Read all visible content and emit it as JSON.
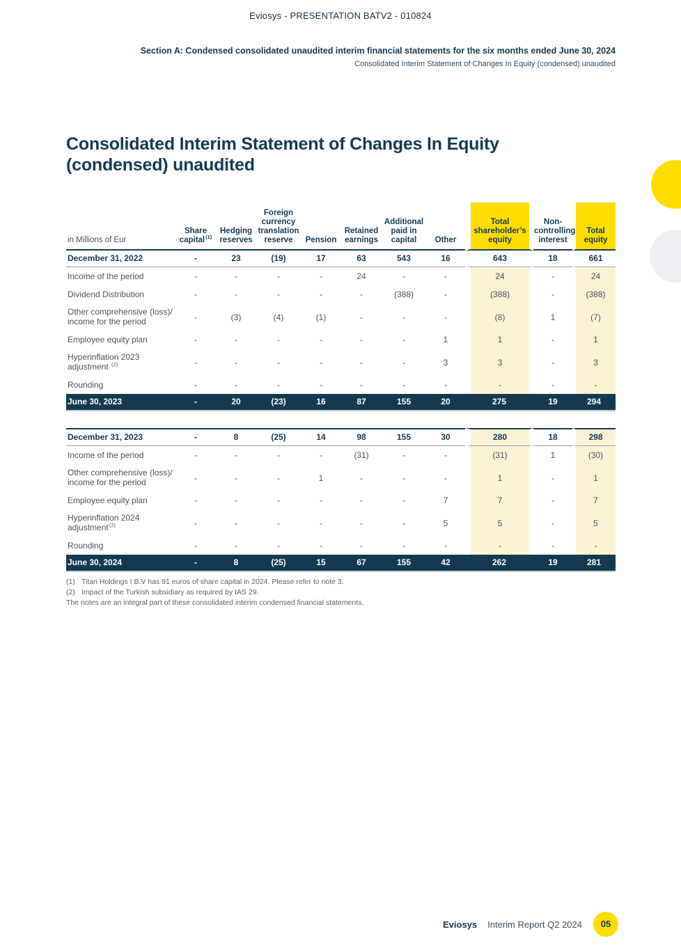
{
  "colors": {
    "navy": "#143a52",
    "yellow": "#ffdd00",
    "cream_highlight": "#faf3d3",
    "gray_circle": "#edeff2"
  },
  "header": {
    "doc_header": "Eviosys - PRESENTATION BATV2 - 010824",
    "section_title": "Section A: Condensed consolidated unaudited interim financial statements for the six months ended June 30, 2024",
    "section_subtitle": "Consolidated Interim Statement of Changes In Equity (condensed) unaudited"
  },
  "title": {
    "line1": "Consolidated Interim Statement of Changes In Equity",
    "line2": "(condensed) unaudited"
  },
  "table": {
    "unit_label": "in Millions of Eur",
    "columns": [
      {
        "lines": [
          "Share",
          "capital"
        ],
        "sup": "(1)"
      },
      {
        "lines": [
          "Hedging",
          "reserves"
        ]
      },
      {
        "lines": [
          "Foreign",
          "currency",
          "translation",
          "reserve"
        ]
      },
      {
        "lines": [
          "Pension"
        ]
      },
      {
        "lines": [
          "Retained",
          "earnings"
        ]
      },
      {
        "lines": [
          "Additional",
          "paid in",
          "capital"
        ]
      },
      {
        "lines": [
          "Other"
        ]
      },
      {
        "lines": [
          "Total",
          "shareholder’s",
          "equity"
        ],
        "highlight": true
      },
      {
        "lines": [
          "Non-",
          "controlling",
          "interest"
        ]
      },
      {
        "lines": [
          "Total",
          "equity"
        ],
        "highlight": true
      }
    ],
    "period1": {
      "opening": {
        "label": "December 31, 2022",
        "values": [
          "-",
          "23",
          "(19)",
          "17",
          "63",
          "543",
          "16",
          "643",
          "18",
          "661"
        ]
      },
      "rows": [
        {
          "label": "Income of the period",
          "values": [
            "-",
            "-",
            "-",
            "-",
            "24",
            "-",
            "-",
            "24",
            "-",
            "24"
          ]
        },
        {
          "label": "Dividend Distribution",
          "values": [
            "-",
            "-",
            "-",
            "-",
            "-",
            "(388)",
            "-",
            "(388)",
            "-",
            "(388)"
          ]
        },
        {
          "lines": [
            "Other comprehensive (loss)/",
            "income for the period"
          ],
          "values": [
            "-",
            "(3)",
            "(4)",
            "(1)",
            "-",
            "-",
            "-",
            "(8)",
            "1",
            "(7)"
          ]
        },
        {
          "label": "Employee equity plan",
          "values": [
            "-",
            "-",
            "-",
            "-",
            "-",
            "-",
            "1",
            "1",
            "-",
            "1"
          ]
        },
        {
          "lines": [
            "Hyperinflation 2023",
            "adjustment "
          ],
          "sup": "(2)",
          "values": [
            "-",
            "-",
            "-",
            "-",
            "-",
            "-",
            "3",
            "3",
            "-",
            "3"
          ]
        },
        {
          "label": "Rounding",
          "values": [
            "-",
            "-",
            "-",
            "-",
            "-",
            "-",
            "-",
            "-",
            "-",
            "-"
          ]
        }
      ],
      "closing": {
        "label": "June 30, 2023",
        "values": [
          "-",
          "20",
          "(23)",
          "16",
          "87",
          "155",
          "20",
          "275",
          "19",
          "294"
        ]
      }
    },
    "period2": {
      "opening": {
        "label": "December 31, 2023",
        "values": [
          "-",
          "8",
          "(25)",
          "14",
          "98",
          "155",
          "30",
          "280",
          "18",
          "298"
        ]
      },
      "rows": [
        {
          "label": "Income of the period",
          "values": [
            "-",
            "-",
            "-",
            "-",
            "(31)",
            "-",
            "-",
            "(31)",
            "1",
            "(30)"
          ]
        },
        {
          "lines": [
            "Other comprehensive (loss)/",
            "income for the period"
          ],
          "values": [
            "-",
            "-",
            "-",
            "1",
            "-",
            "-",
            "-",
            "1",
            "-",
            "1"
          ]
        },
        {
          "label": "Employee equity plan",
          "values": [
            "-",
            "-",
            "-",
            "-",
            "-",
            "-",
            "7",
            "7",
            "-",
            "7"
          ]
        },
        {
          "lines": [
            "Hyperinflation 2024",
            "adjustment"
          ],
          "sup": "(2)",
          "values": [
            "-",
            "-",
            "-",
            "-",
            "-",
            "-",
            "5",
            "5",
            "-",
            "5"
          ]
        },
        {
          "label": "Rounding",
          "values": [
            "-",
            "-",
            "-",
            "-",
            "-",
            "-",
            "-",
            "-",
            "-",
            "-"
          ]
        }
      ],
      "closing": {
        "label": "June 30, 2024",
        "values": [
          "-",
          "8",
          "(25)",
          "15",
          "67",
          "155",
          "42",
          "262",
          "19",
          "281"
        ]
      }
    }
  },
  "footnotes": {
    "items": [
      {
        "marker": "(1)",
        "text": "Titan Holdings I B.V has 91 euros of share capital in 2024. Please refer to note 3."
      },
      {
        "marker": "(2)",
        "text": "Impact of the Turkish subsidiary as required by IAS 29."
      }
    ],
    "closing_note": "The notes are an integral part of these consolidated interim condensed financial statements."
  },
  "footer": {
    "brand": "Eviosys",
    "report": "Interim Report Q2 2024",
    "page_number": "05"
  }
}
